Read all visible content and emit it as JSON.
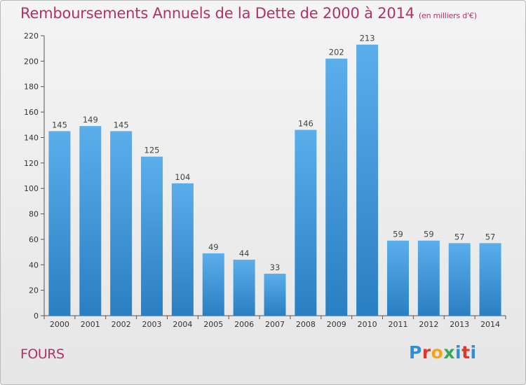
{
  "header": {
    "title": "Remboursements Annuels de la Dette de 2000 à 2014",
    "unit": "(en milliers d'€)"
  },
  "commune": "FOURS",
  "logo": {
    "text": "Proxiti"
  },
  "colors": {
    "bar_top": "#5aaeea",
    "bar_bottom": "#2a7fc3",
    "title": "#b3306b"
  },
  "chart_data": {
    "type": "bar",
    "title": "Remboursements Annuels de la Dette de 2000 à 2014",
    "categories": [
      "2000",
      "2001",
      "2002",
      "2003",
      "2004",
      "2005",
      "2006",
      "2007",
      "2008",
      "2009",
      "2010",
      "2011",
      "2012",
      "2013",
      "2014"
    ],
    "values": [
      145,
      149,
      145,
      125,
      104,
      49,
      44,
      33,
      146,
      202,
      213,
      59,
      59,
      57,
      57
    ],
    "ylim": [
      0,
      220
    ],
    "yticks": [
      0,
      20,
      40,
      60,
      80,
      100,
      120,
      140,
      160,
      180,
      200,
      220
    ],
    "grid": false,
    "xlabel": "",
    "ylabel": ""
  }
}
